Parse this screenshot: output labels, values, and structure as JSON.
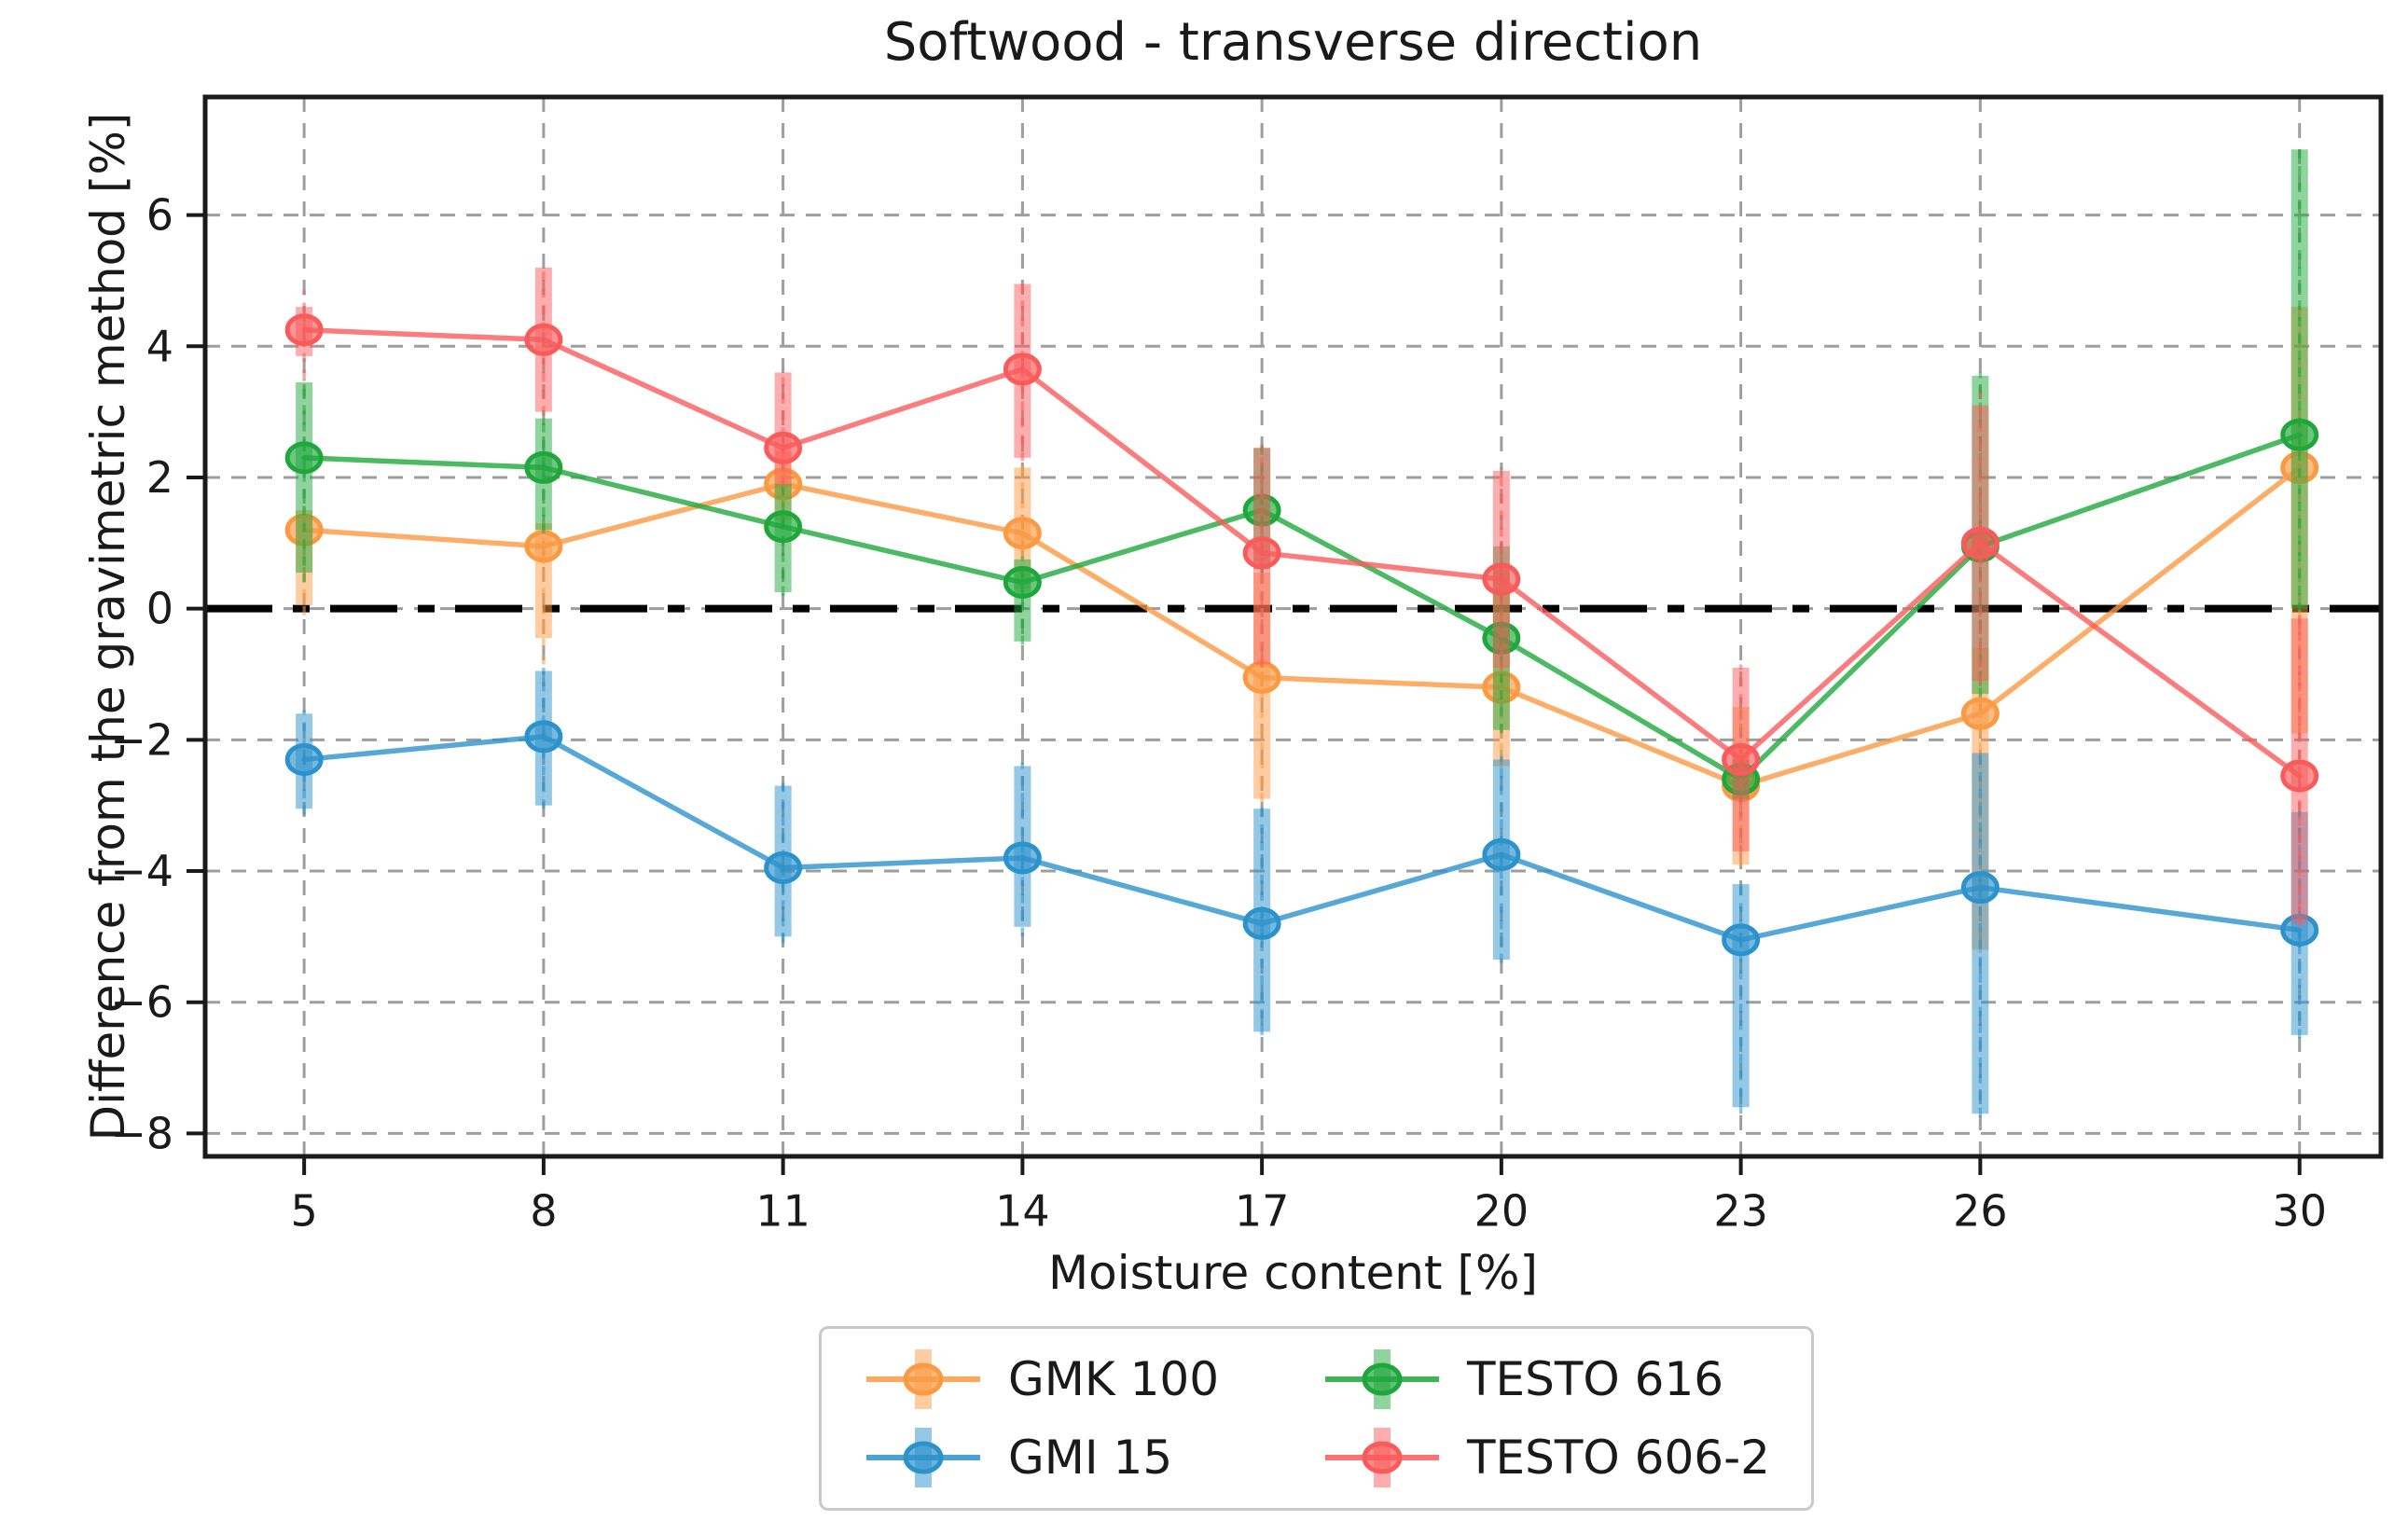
{
  "chart_data": {
    "type": "line",
    "title": "Softwood - transverse direction",
    "xlabel": "Moisture content  [%]",
    "ylabel": "Difference from the gravimetric method [%]",
    "x": [
      5,
      8,
      11,
      14,
      17,
      20,
      23,
      26,
      30
    ],
    "xticks": [
      5,
      8,
      11,
      14,
      17,
      20,
      23,
      26,
      30
    ],
    "yticks": [
      6,
      4,
      2,
      0,
      -2,
      -4,
      -6,
      -8
    ],
    "xlim": [
      3.76,
      31.02
    ],
    "ylim": [
      -8.35,
      7.8
    ],
    "grid": true,
    "grid_color": "#9e9e9e",
    "axis_color": "#1a1a1a",
    "zero_line": {
      "value": 0,
      "style": "dash-dot",
      "color": "#000000"
    },
    "marker": "ellipse",
    "legend_position": "below-center",
    "legend_columns": 2,
    "series": [
      {
        "name": "GMK 100",
        "color": "#FB9A42",
        "values": [
          1.2,
          0.95,
          1.9,
          1.15,
          -1.05,
          -1.2,
          -2.7,
          -1.6,
          2.15
        ],
        "band_low": [
          0.05,
          -0.45,
          1.35,
          0.3,
          -2.9,
          -2.4,
          -3.9,
          -5.2,
          -1.9
        ],
        "band_high": [
          1.5,
          1.3,
          2.4,
          2.15,
          0.55,
          0.6,
          -1.5,
          -0.6,
          4.6
        ],
        "whisker_low": [
          -0.1,
          -0.85,
          1.3,
          0.25,
          -2.95,
          -2.45,
          -3.95,
          -5.25,
          -1.95
        ],
        "whisker_high": [
          1.55,
          1.35,
          2.45,
          2.2,
          0.6,
          0.65,
          -1.45,
          -0.55,
          4.65
        ]
      },
      {
        "name": "GMI 15",
        "color": "#2C92CC",
        "values": [
          -2.3,
          -1.95,
          -3.95,
          -3.8,
          -4.8,
          -3.75,
          -5.05,
          -4.25,
          -4.9
        ],
        "band_low": [
          -3.05,
          -3.0,
          -5.0,
          -4.85,
          -6.45,
          -5.35,
          -7.6,
          -7.7,
          -6.5
        ],
        "band_high": [
          -1.6,
          -0.95,
          -2.7,
          -2.4,
          -3.05,
          -2.3,
          -4.2,
          -2.2,
          -3.1
        ],
        "whisker_low": [
          -3.15,
          -3.05,
          -5.1,
          -5.0,
          -6.5,
          -5.4,
          -7.7,
          -7.75,
          -6.55
        ],
        "whisker_high": [
          -1.55,
          -0.9,
          -2.65,
          -2.35,
          -3.0,
          -2.25,
          -4.15,
          -2.15,
          -3.05
        ]
      },
      {
        "name": "TESTO 616",
        "color": "#1FA73C",
        "values": [
          2.3,
          2.15,
          1.25,
          0.4,
          1.5,
          -0.45,
          -2.6,
          0.95,
          2.65
        ],
        "band_low": [
          0.55,
          1.2,
          0.25,
          -0.5,
          0.6,
          -1.85,
          -2.9,
          -1.3,
          0.0
        ],
        "band_high": [
          3.45,
          2.9,
          1.9,
          0.75,
          2.45,
          0.95,
          -2.3,
          3.55,
          7.0
        ],
        "whisker_low": [
          0.4,
          1.15,
          0.2,
          -0.55,
          0.55,
          -1.9,
          -2.95,
          -1.35,
          -0.05
        ],
        "whisker_high": [
          3.5,
          2.95,
          1.95,
          0.8,
          2.5,
          1.0,
          -2.25,
          3.6,
          7.05
        ]
      },
      {
        "name": "TESTO 606-2",
        "color": "#F95B5B",
        "values": [
          4.25,
          4.1,
          2.45,
          3.65,
          0.85,
          0.45,
          -2.3,
          1.0,
          -2.55
        ],
        "band_low": [
          3.85,
          3.0,
          1.9,
          2.3,
          -0.85,
          -0.9,
          -3.7,
          -1.1,
          -4.8
        ],
        "band_high": [
          4.6,
          5.2,
          3.6,
          4.95,
          2.45,
          2.1,
          -0.9,
          3.1,
          -0.15
        ],
        "whisker_low": [
          3.5,
          2.95,
          1.85,
          2.25,
          -0.9,
          -0.95,
          -3.75,
          -1.15,
          -4.85
        ],
        "whisker_high": [
          4.85,
          5.25,
          3.65,
          5.0,
          2.5,
          2.15,
          -0.85,
          3.3,
          -0.1
        ]
      }
    ]
  }
}
